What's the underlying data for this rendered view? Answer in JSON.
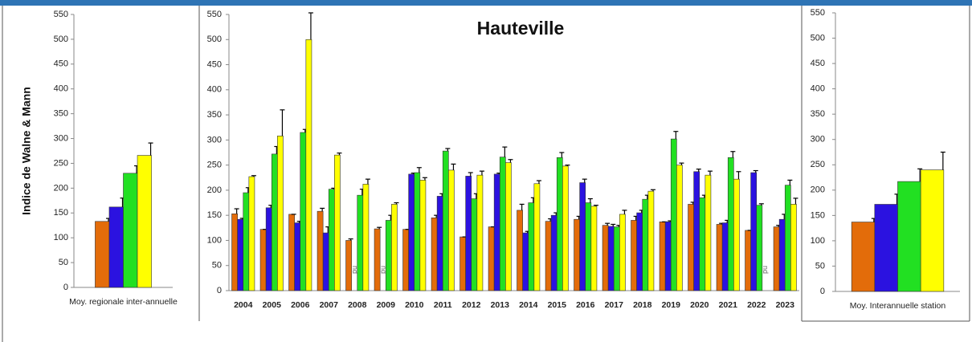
{
  "chart_data": [
    {
      "type": "bar",
      "ylabel": "Indice de Walne & Mann",
      "categories": [
        "Moy. regionale inter-annuelle"
      ],
      "series": [
        {
          "color": "#e36c0a",
          "values": [
            133
          ],
          "errors": [
            6
          ]
        },
        {
          "color": "#2b12e0",
          "values": [
            162
          ],
          "errors": [
            18
          ]
        },
        {
          "color": "#22e022",
          "values": [
            230
          ],
          "errors": [
            15
          ]
        },
        {
          "color": "#ffff00",
          "values": [
            266
          ],
          "errors": [
            25
          ]
        }
      ],
      "ylim": [
        0,
        550
      ],
      "yticks": [
        0,
        50,
        100,
        150,
        200,
        250,
        300,
        350,
        400,
        450,
        500,
        550
      ]
    },
    {
      "type": "bar",
      "title": "Hauteville",
      "categories": [
        "2004",
        "2005",
        "2006",
        "2007",
        "2008",
        "2009",
        "2010",
        "2011",
        "2012",
        "2013",
        "2014",
        "2015",
        "2016",
        "2017",
        "2018",
        "2019",
        "2020",
        "2021",
        "2022",
        "2023"
      ],
      "series": [
        {
          "color": "#e36c0a",
          "values": [
            153,
            122,
            152,
            158,
            100,
            123,
            122,
            145,
            107,
            127,
            160,
            138,
            142,
            130,
            140,
            137,
            172,
            132,
            120,
            127
          ],
          "errors": [
            10,
            0,
            0,
            6,
            3,
            3,
            0,
            5,
            0,
            0,
            12,
            5,
            6,
            4,
            8,
            0,
            4,
            2,
            0,
            3
          ]
        },
        {
          "color": "#2b12e0",
          "values": [
            142,
            165,
            135,
            115,
            null,
            null,
            232,
            188,
            228,
            232,
            115,
            150,
            215,
            128,
            155,
            137,
            237,
            135,
            235,
            142
          ],
          "errors": [
            2,
            5,
            3,
            12,
            null,
            null,
            2,
            5,
            7,
            2,
            3,
            5,
            7,
            4,
            5,
            2,
            5,
            5,
            4,
            10
          ],
          "value_labels": [
            null,
            null,
            null,
            null,
            "nd",
            "nd",
            null,
            null,
            null,
            null,
            null,
            null,
            null,
            null,
            null,
            null,
            null,
            null,
            null,
            null
          ]
        },
        {
          "color": "#22e022",
          "values": [
            195,
            272,
            315,
            202,
            190,
            140,
            235,
            278,
            183,
            266,
            175,
            265,
            175,
            127,
            182,
            302,
            185,
            265,
            170,
            210
          ],
          "errors": [
            10,
            15,
            6,
            2,
            12,
            10,
            10,
            5,
            10,
            20,
            10,
            10,
            8,
            3,
            8,
            15,
            5,
            12,
            3,
            10
          ]
        },
        {
          "color": "#ffff00",
          "values": [
            227,
            308,
            500,
            270,
            212,
            172,
            220,
            240,
            230,
            255,
            213,
            248,
            168,
            152,
            198,
            250,
            230,
            222,
            null,
            172
          ],
          "errors": [
            2,
            52,
            55,
            4,
            10,
            3,
            5,
            12,
            8,
            6,
            6,
            2,
            2,
            8,
            3,
            4,
            8,
            15,
            null,
            12
          ],
          "value_labels": [
            null,
            null,
            null,
            null,
            null,
            null,
            null,
            null,
            null,
            null,
            null,
            null,
            null,
            null,
            null,
            null,
            null,
            null,
            "nd",
            null
          ]
        }
      ],
      "ylim": [
        0,
        550
      ],
      "yticks": [
        0,
        50,
        100,
        150,
        200,
        250,
        300,
        350,
        400,
        450,
        500,
        550
      ]
    },
    {
      "type": "bar",
      "categories": [
        "Moy. Interannuelle station"
      ],
      "series": [
        {
          "color": "#e36c0a",
          "values": [
            137
          ],
          "errors": [
            7
          ]
        },
        {
          "color": "#2b12e0",
          "values": [
            172
          ],
          "errors": [
            20
          ]
        },
        {
          "color": "#22e022",
          "values": [
            217
          ],
          "errors": [
            25
          ]
        },
        {
          "color": "#ffff00",
          "values": [
            240
          ],
          "errors": [
            35
          ]
        }
      ],
      "ylim": [
        0,
        550
      ],
      "yticks": [
        0,
        50,
        100,
        150,
        200,
        250,
        300,
        350,
        400,
        450,
        500,
        550
      ]
    }
  ]
}
